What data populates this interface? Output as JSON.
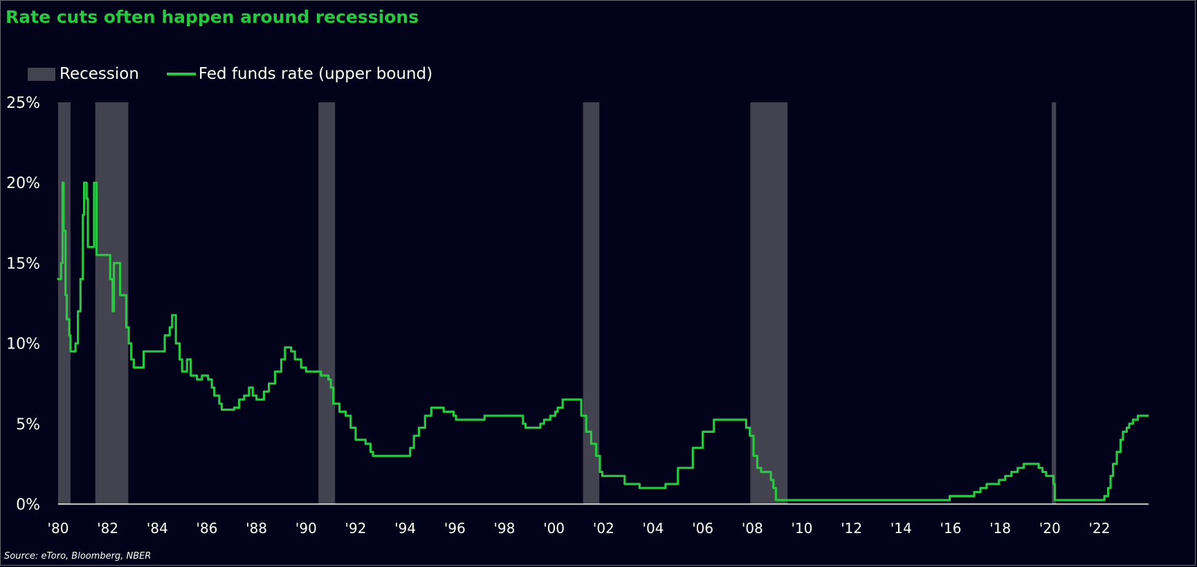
{
  "title": "Rate cuts often happen around recessions",
  "source": "Source: eToro, Bloomberg, NBER",
  "colors": {
    "background": "#02021a",
    "line": "#27c93f",
    "recession": "#43434f",
    "axis": "#ffffff",
    "title": "#27c93f"
  },
  "chart_data": {
    "type": "line",
    "title": "Rate cuts often happen around recessions",
    "xlabel": "",
    "ylabel": "",
    "xlim": [
      1980,
      2024
    ],
    "ylim": [
      0,
      25
    ],
    "grid": false,
    "legend_placement": "top-left",
    "x_ticks": [
      {
        "year": 1980,
        "label": "'80"
      },
      {
        "year": 1982,
        "label": "'82"
      },
      {
        "year": 1984,
        "label": "'84"
      },
      {
        "year": 1986,
        "label": "'86"
      },
      {
        "year": 1988,
        "label": "'88"
      },
      {
        "year": 1990,
        "label": "'90"
      },
      {
        "year": 1992,
        "label": "'92"
      },
      {
        "year": 1994,
        "label": "'94"
      },
      {
        "year": 1996,
        "label": "'96"
      },
      {
        "year": 1998,
        "label": "'98"
      },
      {
        "year": 2000,
        "label": "'00"
      },
      {
        "year": 2002,
        "label": "'02"
      },
      {
        "year": 2004,
        "label": "'04"
      },
      {
        "year": 2006,
        "label": "'06"
      },
      {
        "year": 2008,
        "label": "'08"
      },
      {
        "year": 2010,
        "label": "'10"
      },
      {
        "year": 2012,
        "label": "'12"
      },
      {
        "year": 2014,
        "label": "'14"
      },
      {
        "year": 2016,
        "label": "'16"
      },
      {
        "year": 2018,
        "label": "'18"
      },
      {
        "year": 2020,
        "label": "'20"
      },
      {
        "year": 2022,
        "label": "'22"
      }
    ],
    "y_ticks": [
      {
        "value": 0,
        "label": "0%"
      },
      {
        "value": 5,
        "label": "5%"
      },
      {
        "value": 10,
        "label": "10%"
      },
      {
        "value": 15,
        "label": "15%"
      },
      {
        "value": 20,
        "label": "20%"
      },
      {
        "value": 25,
        "label": "25%"
      }
    ],
    "recession_label": "Recession",
    "recessions": [
      {
        "start": 1980.0,
        "end": 1980.5
      },
      {
        "start": 1981.5,
        "end": 1982.83
      },
      {
        "start": 1990.5,
        "end": 1991.17
      },
      {
        "start": 2001.17,
        "end": 2001.83
      },
      {
        "start": 2007.92,
        "end": 2009.42
      },
      {
        "start": 2020.08,
        "end": 2020.25
      }
    ],
    "series": [
      {
        "name": "Fed funds rate (upper bound)",
        "points": [
          [
            1980.0,
            14
          ],
          [
            1980.08,
            14
          ],
          [
            1980.12,
            15
          ],
          [
            1980.18,
            20
          ],
          [
            1980.22,
            17
          ],
          [
            1980.3,
            13
          ],
          [
            1980.35,
            11.5
          ],
          [
            1980.45,
            10.5
          ],
          [
            1980.5,
            9.5
          ],
          [
            1980.7,
            10
          ],
          [
            1980.8,
            12
          ],
          [
            1980.9,
            14
          ],
          [
            1981.0,
            18
          ],
          [
            1981.05,
            20
          ],
          [
            1981.15,
            19
          ],
          [
            1981.2,
            16
          ],
          [
            1981.35,
            16
          ],
          [
            1981.45,
            20
          ],
          [
            1981.55,
            15.5
          ],
          [
            1982.0,
            15.5
          ],
          [
            1982.1,
            14
          ],
          [
            1982.2,
            12
          ],
          [
            1982.25,
            15
          ],
          [
            1982.4,
            15
          ],
          [
            1982.5,
            13
          ],
          [
            1982.7,
            13
          ],
          [
            1982.75,
            11
          ],
          [
            1982.85,
            10
          ],
          [
            1982.95,
            9
          ],
          [
            1983.05,
            8.5
          ],
          [
            1983.4,
            8.5
          ],
          [
            1983.45,
            9.5
          ],
          [
            1983.8,
            9.5
          ],
          [
            1984.2,
            9.5
          ],
          [
            1984.3,
            10.5
          ],
          [
            1984.5,
            11
          ],
          [
            1984.6,
            11.75
          ],
          [
            1984.75,
            10
          ],
          [
            1984.9,
            9
          ],
          [
            1985.0,
            8.25
          ],
          [
            1985.2,
            9
          ],
          [
            1985.35,
            8
          ],
          [
            1985.6,
            7.75
          ],
          [
            1985.8,
            8
          ],
          [
            1986.05,
            7.75
          ],
          [
            1986.2,
            7.25
          ],
          [
            1986.3,
            6.75
          ],
          [
            1986.5,
            6.25
          ],
          [
            1986.6,
            5.875
          ],
          [
            1987.1,
            6
          ],
          [
            1987.3,
            6.5
          ],
          [
            1987.5,
            6.75
          ],
          [
            1987.7,
            7.25
          ],
          [
            1987.85,
            6.75
          ],
          [
            1988.0,
            6.5
          ],
          [
            1988.3,
            7
          ],
          [
            1988.5,
            7.5
          ],
          [
            1988.75,
            8.25
          ],
          [
            1989.0,
            9
          ],
          [
            1989.15,
            9.75
          ],
          [
            1989.4,
            9.5
          ],
          [
            1989.55,
            9
          ],
          [
            1989.8,
            8.5
          ],
          [
            1990.0,
            8.25
          ],
          [
            1990.5,
            8.25
          ],
          [
            1990.6,
            8
          ],
          [
            1990.9,
            7.75
          ],
          [
            1991.0,
            7.25
          ],
          [
            1991.1,
            6.25
          ],
          [
            1991.35,
            5.75
          ],
          [
            1991.6,
            5.5
          ],
          [
            1991.8,
            4.75
          ],
          [
            1992.0,
            4
          ],
          [
            1992.4,
            3.75
          ],
          [
            1992.6,
            3.25
          ],
          [
            1992.7,
            3
          ],
          [
            1994.0,
            3
          ],
          [
            1994.2,
            3.5
          ],
          [
            1994.35,
            4.25
          ],
          [
            1994.55,
            4.75
          ],
          [
            1994.8,
            5.5
          ],
          [
            1995.05,
            6
          ],
          [
            1995.55,
            5.75
          ],
          [
            1995.95,
            5.5
          ],
          [
            1996.05,
            5.25
          ],
          [
            1997.2,
            5.5
          ],
          [
            1998.7,
            5.5
          ],
          [
            1998.75,
            5
          ],
          [
            1998.85,
            4.75
          ],
          [
            1999.45,
            5
          ],
          [
            1999.6,
            5.25
          ],
          [
            1999.85,
            5.5
          ],
          [
            2000.05,
            5.75
          ],
          [
            2000.15,
            6
          ],
          [
            2000.35,
            6.5
          ],
          [
            2001.0,
            6.5
          ],
          [
            2001.1,
            5.5
          ],
          [
            2001.3,
            4.5
          ],
          [
            2001.5,
            3.75
          ],
          [
            2001.7,
            3
          ],
          [
            2001.85,
            2
          ],
          [
            2001.95,
            1.75
          ],
          [
            2002.85,
            1.25
          ],
          [
            2003.45,
            1
          ],
          [
            2004.45,
            1
          ],
          [
            2004.5,
            1.25
          ],
          [
            2005.0,
            2.25
          ],
          [
            2005.6,
            3.5
          ],
          [
            2006.0,
            4.5
          ],
          [
            2006.45,
            5.25
          ],
          [
            2007.65,
            5.25
          ],
          [
            2007.75,
            4.75
          ],
          [
            2007.9,
            4.25
          ],
          [
            2008.05,
            3
          ],
          [
            2008.2,
            2.25
          ],
          [
            2008.35,
            2
          ],
          [
            2008.75,
            1.5
          ],
          [
            2008.85,
            1
          ],
          [
            2008.95,
            0.25
          ],
          [
            2015.95,
            0.25
          ],
          [
            2015.96,
            0.5
          ],
          [
            2016.95,
            0.75
          ],
          [
            2017.2,
            1
          ],
          [
            2017.45,
            1.25
          ],
          [
            2017.95,
            1.5
          ],
          [
            2018.2,
            1.75
          ],
          [
            2018.45,
            2
          ],
          [
            2018.7,
            2.25
          ],
          [
            2018.95,
            2.5
          ],
          [
            2019.55,
            2.25
          ],
          [
            2019.7,
            2
          ],
          [
            2019.85,
            1.75
          ],
          [
            2020.15,
            1.25
          ],
          [
            2020.2,
            0.25
          ],
          [
            2022.2,
            0.5
          ],
          [
            2022.35,
            1
          ],
          [
            2022.45,
            1.75
          ],
          [
            2022.55,
            2.5
          ],
          [
            2022.7,
            3.25
          ],
          [
            2022.85,
            4
          ],
          [
            2022.95,
            4.5
          ],
          [
            2023.1,
            4.75
          ],
          [
            2023.2,
            5
          ],
          [
            2023.35,
            5.25
          ],
          [
            2023.55,
            5.5
          ],
          [
            2023.95,
            5.5
          ]
        ]
      }
    ]
  }
}
